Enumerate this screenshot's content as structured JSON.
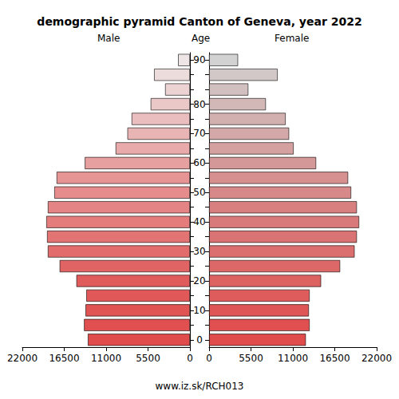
{
  "chart_data": {
    "type": "bar",
    "orientation": "horizontal",
    "title": "demographic pyramid Canton of Geneva, year 2022",
    "ylabel": "Age",
    "annotations": [
      "www.iz.sk/RCH013"
    ],
    "categories": [
      "0",
      null,
      "10",
      null,
      "20",
      null,
      "30",
      null,
      "40",
      null,
      "50",
      null,
      "60",
      null,
      "70",
      null,
      "80",
      null,
      null,
      "90"
    ],
    "series": [
      {
        "name": "Male",
        "values": [
          13400,
          13900,
          13700,
          13600,
          14900,
          17100,
          18650,
          18750,
          18850,
          18650,
          17800,
          17500,
          13800,
          9750,
          8200,
          7650,
          5150,
          3250,
          4700,
          1550
        ],
        "colors": [
          "#e04c4c",
          "#e05050",
          "#e05454",
          "#e05858",
          "#e05c5c",
          "#e16464",
          "#e26c6c",
          "#e37474",
          "#e47c7c",
          "#e58484",
          "#e68c8c",
          "#e69494",
          "#e7a0a0",
          "#e8aaaa",
          "#e9b4b4",
          "#eabebe",
          "#ebc8c8",
          "#ecd2d2",
          "#eddcdc",
          "#eee6e6"
        ]
      },
      {
        "name": "Female",
        "values": [
          12700,
          13200,
          13100,
          13200,
          14700,
          17200,
          19100,
          19400,
          19700,
          19400,
          18650,
          18250,
          14050,
          11100,
          10500,
          10050,
          7450,
          5150,
          9000,
          3800
        ],
        "colors": [
          "#e04c4c",
          "#e05050",
          "#df5656",
          "#de5c5c",
          "#dd6262",
          "#dc6868",
          "#db6e6e",
          "#da7474",
          "#d97a7a",
          "#d88080",
          "#d78888",
          "#d69090",
          "#d59898",
          "#d4a0a0",
          "#d4a8a8",
          "#d3b0b0",
          "#d3b8b8",
          "#d2c0c0",
          "#d2c8c8",
          "#d2d2d2"
        ]
      }
    ],
    "xlim": [
      0,
      22000
    ],
    "xticks": [
      0,
      5500,
      11000,
      16500,
      22000
    ],
    "grid": false
  }
}
